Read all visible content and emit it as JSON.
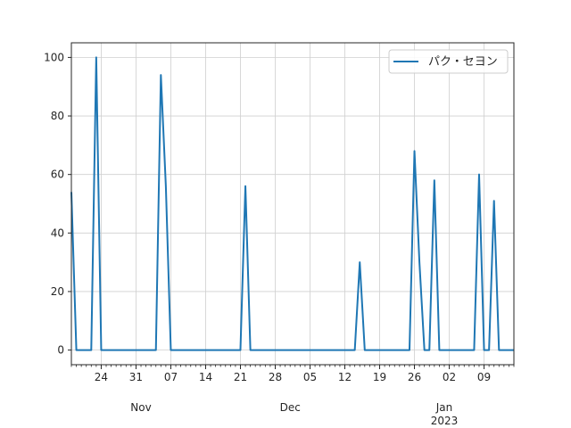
{
  "chart_data": {
    "type": "line",
    "title": "",
    "xlabel": "",
    "ylabel": "",
    "x_range": [
      "2022-10-18",
      "2023-01-15"
    ],
    "ylim": [
      -5,
      105
    ],
    "y_ticks": [
      0,
      20,
      40,
      60,
      80,
      100
    ],
    "x_day_ticks": [
      {
        "date": "2022-10-24",
        "label": "24"
      },
      {
        "date": "2022-10-31",
        "label": "31"
      },
      {
        "date": "2022-11-07",
        "label": "07"
      },
      {
        "date": "2022-11-14",
        "label": "14"
      },
      {
        "date": "2022-11-21",
        "label": "21"
      },
      {
        "date": "2022-11-28",
        "label": "28"
      },
      {
        "date": "2022-12-05",
        "label": "05"
      },
      {
        "date": "2022-12-12",
        "label": "12"
      },
      {
        "date": "2022-12-19",
        "label": "19"
      },
      {
        "date": "2022-12-26",
        "label": "26"
      },
      {
        "date": "2023-01-02",
        "label": "02"
      },
      {
        "date": "2023-01-09",
        "label": "09"
      }
    ],
    "x_month_labels": [
      {
        "date": "2022-11-01",
        "label": "Nov"
      },
      {
        "date": "2022-12-01",
        "label": "Dec"
      },
      {
        "date": "2023-01-01",
        "label": "Jan",
        "sub": "2023"
      }
    ],
    "grid": true,
    "legend_position": "upper right",
    "series": [
      {
        "name": "パク・セヨン",
        "color": "#1f77b4",
        "points": [
          [
            "2022-10-18",
            54
          ],
          [
            "2022-10-19",
            0
          ],
          [
            "2022-10-20",
            0
          ],
          [
            "2022-10-21",
            0
          ],
          [
            "2022-10-22",
            0
          ],
          [
            "2022-10-23",
            100
          ],
          [
            "2022-10-24",
            0
          ],
          [
            "2022-10-25",
            0
          ],
          [
            "2022-11-03",
            0
          ],
          [
            "2022-11-04",
            0
          ],
          [
            "2022-11-05",
            94
          ],
          [
            "2022-11-06",
            56
          ],
          [
            "2022-11-07",
            0
          ],
          [
            "2022-11-08",
            0
          ],
          [
            "2022-11-20",
            0
          ],
          [
            "2022-11-21",
            0
          ],
          [
            "2022-11-22",
            56
          ],
          [
            "2022-11-23",
            0
          ],
          [
            "2022-11-24",
            0
          ],
          [
            "2022-12-13",
            0
          ],
          [
            "2022-12-14",
            0
          ],
          [
            "2022-12-15",
            30
          ],
          [
            "2022-12-16",
            0
          ],
          [
            "2022-12-17",
            0
          ],
          [
            "2022-12-24",
            0
          ],
          [
            "2022-12-25",
            0
          ],
          [
            "2022-12-26",
            68
          ],
          [
            "2022-12-27",
            30
          ],
          [
            "2022-12-28",
            0
          ],
          [
            "2022-12-29",
            0
          ],
          [
            "2022-12-30",
            58
          ],
          [
            "2022-12-31",
            0
          ],
          [
            "2023-01-01",
            0
          ],
          [
            "2023-01-06",
            0
          ],
          [
            "2023-01-07",
            0
          ],
          [
            "2023-01-08",
            60
          ],
          [
            "2023-01-09",
            0
          ],
          [
            "2023-01-10",
            0
          ],
          [
            "2023-01-11",
            51
          ],
          [
            "2023-01-12",
            0
          ],
          [
            "2023-01-13",
            0
          ],
          [
            "2023-01-14",
            0
          ],
          [
            "2023-01-15",
            0
          ]
        ]
      }
    ]
  }
}
